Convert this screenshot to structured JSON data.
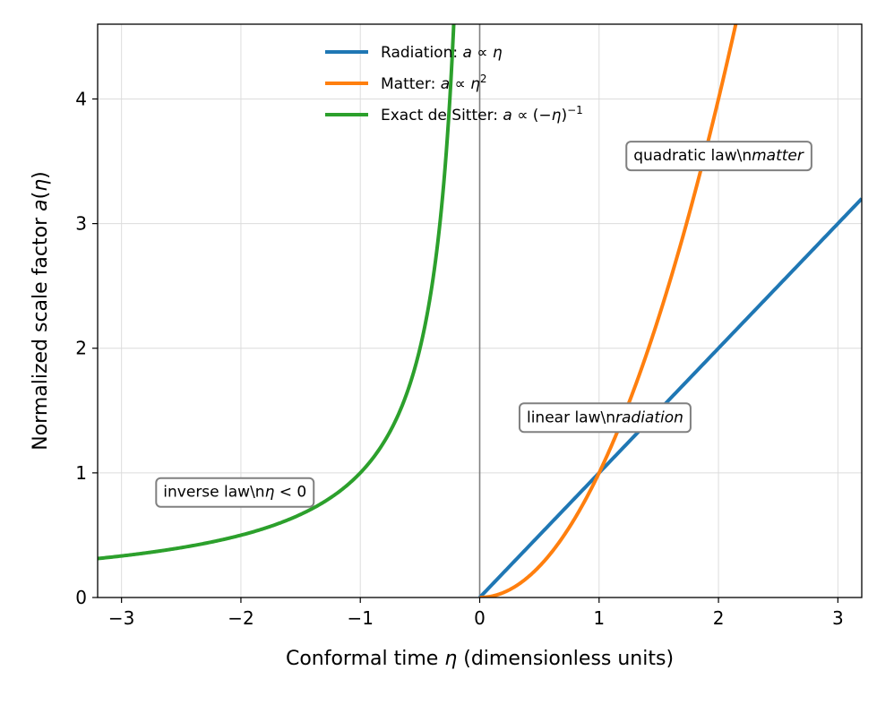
{
  "chart_data": {
    "type": "line",
    "xlabel": "Conformal time η (dimensionless units)",
    "ylabel": "Normalized scale factor a(η)",
    "xlim": [
      -3.2,
      3.2
    ],
    "ylim": [
      0,
      4.6
    ],
    "x_ticks": [
      -3,
      -2,
      -1,
      0,
      1,
      2,
      3
    ],
    "x_tick_labels": [
      "−3",
      "−2",
      "−1",
      "0",
      "1",
      "2",
      "3"
    ],
    "y_ticks": [
      0,
      1,
      2,
      3,
      4
    ],
    "y_tick_labels": [
      "0",
      "1",
      "2",
      "3",
      "4"
    ],
    "grid": true,
    "legend_position": "top-center",
    "vertical_reference_line_x": 0,
    "series": [
      {
        "name": "Radiation: a ∝ η",
        "legend_parts": [
          "Radiation: ",
          "a",
          " ∝ ",
          "η"
        ],
        "color": "#1f77b4",
        "law": "a = η",
        "x": [
          0,
          0.5,
          1,
          1.5,
          2,
          2.5,
          3,
          3.2
        ],
        "y": [
          0,
          0.5,
          1,
          1.5,
          2,
          2.5,
          3,
          3.2
        ]
      },
      {
        "name": "Matter: a ∝ η²",
        "legend_parts": [
          "Matter: ",
          "a",
          " ∝ ",
          "η",
          "2"
        ],
        "color": "#ff7f0e",
        "law": "a = η^2",
        "x": [
          0,
          0.5,
          1,
          1.5,
          2,
          2.14
        ],
        "y": [
          0,
          0.25,
          1,
          2.25,
          4,
          4.6
        ]
      },
      {
        "name": "Exact de Sitter: a ∝ (−η)⁻¹",
        "legend_parts": [
          "Exact de Sitter: ",
          "a",
          " ∝ (−",
          "η",
          ")",
          "−1"
        ],
        "color": "#2ca02c",
        "law": "a = -1/η",
        "x": [
          -3.2,
          -3,
          -2.5,
          -2,
          -1.5,
          -1,
          -0.5,
          -0.3,
          -0.217
        ],
        "y": [
          0.3125,
          0.333,
          0.4,
          0.5,
          0.667,
          1,
          2,
          3.333,
          4.6
        ]
      }
    ],
    "annotations": [
      {
        "parts": [
          "quadratic law\\n",
          "matter"
        ],
        "x": 2.0,
        "y": 3.55,
        "border_color": "#808080"
      },
      {
        "parts": [
          "linear law\\n",
          "radiation"
        ],
        "x": 1.05,
        "y": 1.45,
        "border_color": "#808080"
      },
      {
        "parts": [
          "inverse law\\n",
          "η",
          " < 0"
        ],
        "x": -2.05,
        "y": 0.85,
        "border_color": "#808080"
      }
    ]
  }
}
